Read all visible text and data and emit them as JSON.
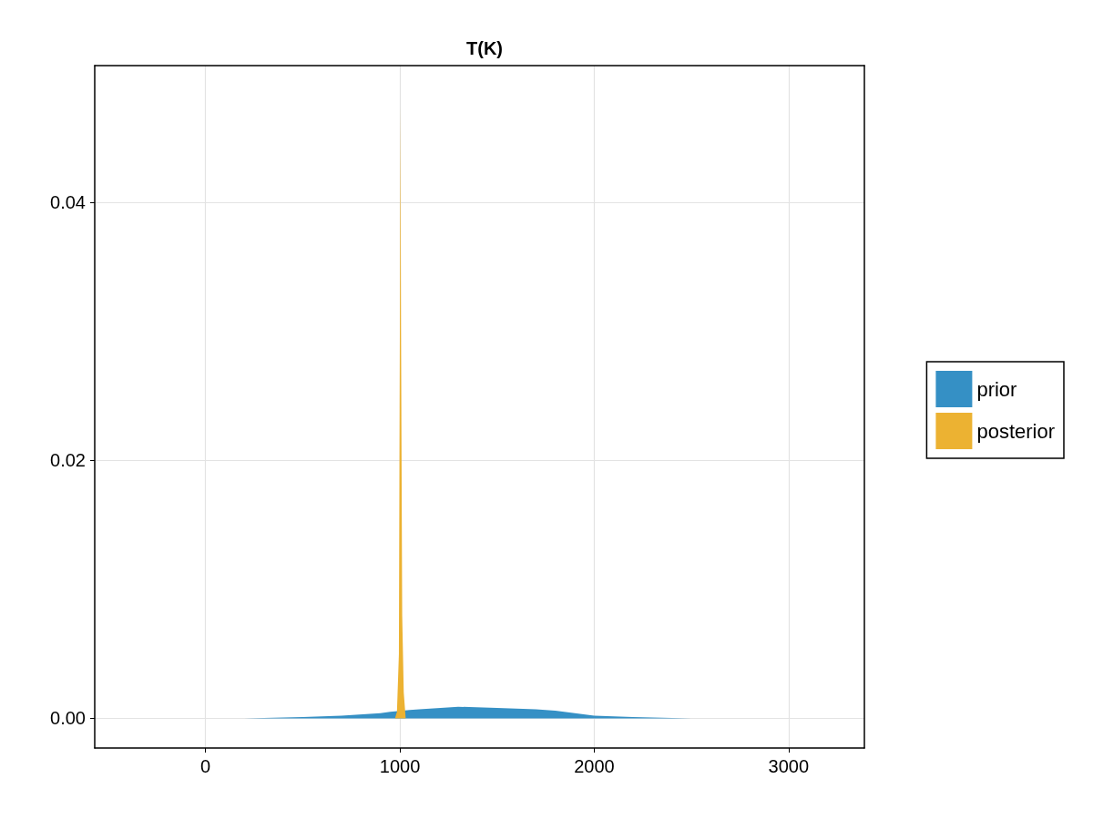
{
  "chart_data": {
    "type": "area",
    "title": "T(K)",
    "xlim": [
      -570,
      3390
    ],
    "xticks": [
      0,
      1000,
      2000,
      3000
    ],
    "ylim": [
      -0.0023,
      0.0506
    ],
    "yticks": [
      {
        "value": 0,
        "label": "0.00"
      },
      {
        "value": 0.02,
        "label": "0.02"
      },
      {
        "value": 0.04,
        "label": "0.04"
      }
    ],
    "grid": true,
    "legend": "right",
    "marker": "none",
    "series": [
      {
        "name": "prior",
        "color": "#3590c5",
        "x": [
          -500,
          200,
          500,
          700,
          900,
          950,
          1050,
          1100,
          1300,
          1500,
          1700,
          1800,
          1900,
          2000,
          2200,
          2500,
          3200
        ],
        "values": [
          0,
          0,
          0.0001,
          0.0002,
          0.0004,
          0.0005,
          0.00065,
          0.0007,
          0.0009,
          0.0008,
          0.0007,
          0.0006,
          0.0004,
          0.0002,
          0.0001,
          0,
          0
        ]
      },
      {
        "name": "posterior",
        "color": "#ecb232",
        "x": [
          975,
          985,
          995,
          1000,
          1003,
          1006,
          1012,
          1020,
          1030
        ],
        "values": [
          0,
          0.0005,
          0.005,
          0.03,
          0.0475,
          0.03,
          0.008,
          0.002,
          0
        ]
      }
    ]
  }
}
